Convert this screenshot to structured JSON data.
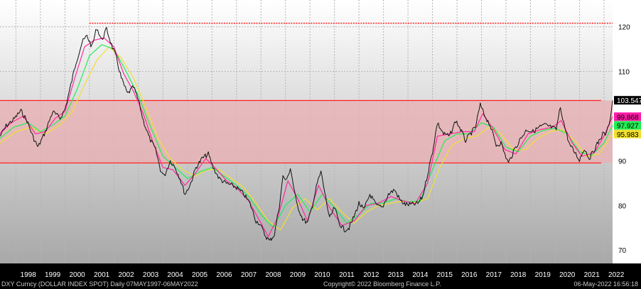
{
  "chart_data": {
    "type": "line",
    "title": "",
    "xlabel": "",
    "ylabel": "",
    "x_range": [
      1997.35,
      2022.35
    ],
    "ylim": [
      67,
      126
    ],
    "x_ticks": [
      "1998",
      "1999",
      "2000",
      "2001",
      "2002",
      "2003",
      "2004",
      "2005",
      "2006",
      "2007",
      "2008",
      "2009",
      "2010",
      "2011",
      "2012",
      "2013",
      "2014",
      "2015",
      "2016",
      "2017",
      "2018",
      "2019",
      "2020",
      "2021",
      "2022"
    ],
    "y_ticks": [
      70,
      80,
      90,
      110,
      120
    ],
    "grid": true,
    "band": {
      "low": 89.5,
      "high": 103.5,
      "color": "#e8b2b4",
      "edge_color": "#ff2020"
    },
    "resistance_line": {
      "value": 120.8,
      "x_start": 2001.0,
      "x_end": 2022.35,
      "color": "#ff3030"
    },
    "series": [
      {
        "name": "",
        "color": "#111111",
        "values": [
          [
            1997.35,
            95.5
          ],
          [
            1997.6,
            97.8
          ],
          [
            1997.9,
            99.2
          ],
          [
            1998.2,
            101.2
          ],
          [
            1998.45,
            99.0
          ],
          [
            1998.7,
            95.3
          ],
          [
            1998.9,
            93.0
          ],
          [
            1999.2,
            96.5
          ],
          [
            1999.5,
            101.0
          ],
          [
            1999.8,
            99.5
          ],
          [
            2000.0,
            101.5
          ],
          [
            2000.2,
            106.0
          ],
          [
            2000.45,
            112.0
          ],
          [
            2000.7,
            116.5
          ],
          [
            2000.9,
            118.0
          ],
          [
            2001.1,
            115.5
          ],
          [
            2001.3,
            119.8
          ],
          [
            2001.5,
            117.0
          ],
          [
            2001.7,
            119.5
          ],
          [
            2001.9,
            116.0
          ],
          [
            2002.1,
            113.0
          ],
          [
            2002.3,
            108.5
          ],
          [
            2002.55,
            105.0
          ],
          [
            2002.8,
            106.5
          ],
          [
            2003.0,
            103.5
          ],
          [
            2003.2,
            99.0
          ],
          [
            2003.45,
            95.0
          ],
          [
            2003.7,
            92.5
          ],
          [
            2003.9,
            88.0
          ],
          [
            2004.05,
            86.5
          ],
          [
            2004.3,
            90.0
          ],
          [
            2004.5,
            88.5
          ],
          [
            2004.7,
            86.0
          ],
          [
            2004.9,
            82.5
          ],
          [
            2005.1,
            84.5
          ],
          [
            2005.35,
            88.5
          ],
          [
            2005.6,
            90.5
          ],
          [
            2005.85,
            91.5
          ],
          [
            2006.05,
            88.5
          ],
          [
            2006.3,
            86.0
          ],
          [
            2006.55,
            85.0
          ],
          [
            2006.8,
            84.5
          ],
          [
            2007.0,
            84.0
          ],
          [
            2007.3,
            82.5
          ],
          [
            2007.55,
            80.5
          ],
          [
            2007.8,
            76.5
          ],
          [
            2007.95,
            76.0
          ],
          [
            2008.15,
            73.5
          ],
          [
            2008.35,
            72.0
          ],
          [
            2008.55,
            73.5
          ],
          [
            2008.75,
            80.0
          ],
          [
            2008.9,
            86.5
          ],
          [
            2009.05,
            85.5
          ],
          [
            2009.2,
            88.5
          ],
          [
            2009.45,
            80.5
          ],
          [
            2009.7,
            77.0
          ],
          [
            2009.9,
            76.0
          ],
          [
            2010.1,
            80.0
          ],
          [
            2010.3,
            85.0
          ],
          [
            2010.45,
            87.5
          ],
          [
            2010.6,
            83.0
          ],
          [
            2010.8,
            77.0
          ],
          [
            2011.0,
            79.5
          ],
          [
            2011.2,
            76.0
          ],
          [
            2011.4,
            74.5
          ],
          [
            2011.6,
            75.0
          ],
          [
            2011.8,
            77.5
          ],
          [
            2012.0,
            80.5
          ],
          [
            2012.2,
            79.0
          ],
          [
            2012.45,
            82.5
          ],
          [
            2012.7,
            80.0
          ],
          [
            2012.95,
            79.5
          ],
          [
            2013.2,
            82.5
          ],
          [
            2013.45,
            83.5
          ],
          [
            2013.7,
            81.0
          ],
          [
            2013.9,
            80.2
          ],
          [
            2014.15,
            80.2
          ],
          [
            2014.4,
            80.4
          ],
          [
            2014.6,
            82.0
          ],
          [
            2014.8,
            87.0
          ],
          [
            2015.0,
            92.0
          ],
          [
            2015.2,
            98.5
          ],
          [
            2015.45,
            96.0
          ],
          [
            2015.7,
            95.5
          ],
          [
            2015.95,
            99.0
          ],
          [
            2016.15,
            97.0
          ],
          [
            2016.35,
            94.5
          ],
          [
            2016.55,
            96.0
          ],
          [
            2016.75,
            97.5
          ],
          [
            2016.95,
            102.5
          ],
          [
            2017.1,
            100.5
          ],
          [
            2017.35,
            98.0
          ],
          [
            2017.6,
            93.5
          ],
          [
            2017.8,
            94.0
          ],
          [
            2017.95,
            91.5
          ],
          [
            2018.1,
            89.5
          ],
          [
            2018.35,
            92.5
          ],
          [
            2018.6,
            95.0
          ],
          [
            2018.85,
            97.0
          ],
          [
            2019.1,
            96.5
          ],
          [
            2019.35,
            97.5
          ],
          [
            2019.6,
            98.0
          ],
          [
            2019.85,
            97.5
          ],
          [
            2020.05,
            97.0
          ],
          [
            2020.22,
            102.0
          ],
          [
            2020.4,
            97.5
          ],
          [
            2020.6,
            93.5
          ],
          [
            2020.85,
            91.5
          ],
          [
            2021.0,
            90.2
          ],
          [
            2021.2,
            92.8
          ],
          [
            2021.4,
            90.5
          ],
          [
            2021.6,
            92.5
          ],
          [
            2021.8,
            94.5
          ],
          [
            2021.95,
            96.0
          ],
          [
            2022.1,
            96.0
          ],
          [
            2022.25,
            99.5
          ],
          [
            2022.35,
            103.5
          ]
        ]
      },
      {
        "name": "",
        "color": "#ff2aa0",
        "values": [
          [
            1997.35,
            96.0
          ],
          [
            1997.8,
            98.5
          ],
          [
            1998.3,
            100.0
          ],
          [
            1998.8,
            96.0
          ],
          [
            1999.2,
            96.5
          ],
          [
            1999.6,
            99.5
          ],
          [
            2000.0,
            101.0
          ],
          [
            2000.4,
            108.5
          ],
          [
            2000.8,
            115.5
          ],
          [
            2001.2,
            117.0
          ],
          [
            2001.6,
            117.5
          ],
          [
            2002.0,
            115.5
          ],
          [
            2002.4,
            109.5
          ],
          [
            2002.8,
            105.5
          ],
          [
            2003.2,
            100.5
          ],
          [
            2003.6,
            94.0
          ],
          [
            2004.0,
            88.5
          ],
          [
            2004.4,
            88.0
          ],
          [
            2004.9,
            84.5
          ],
          [
            2005.3,
            87.0
          ],
          [
            2005.75,
            90.5
          ],
          [
            2006.2,
            88.0
          ],
          [
            2006.6,
            85.5
          ],
          [
            2007.0,
            84.0
          ],
          [
            2007.5,
            81.0
          ],
          [
            2007.9,
            77.0
          ],
          [
            2008.3,
            73.0
          ],
          [
            2008.7,
            77.5
          ],
          [
            2009.1,
            85.5
          ],
          [
            2009.5,
            81.5
          ],
          [
            2009.9,
            76.5
          ],
          [
            2010.35,
            84.5
          ],
          [
            2010.8,
            79.5
          ],
          [
            2011.3,
            75.5
          ],
          [
            2011.8,
            76.5
          ],
          [
            2012.3,
            80.0
          ],
          [
            2012.8,
            80.5
          ],
          [
            2013.3,
            82.0
          ],
          [
            2013.8,
            81.0
          ],
          [
            2014.3,
            80.4
          ],
          [
            2014.8,
            85.0
          ],
          [
            2015.2,
            95.5
          ],
          [
            2015.7,
            96.0
          ],
          [
            2016.2,
            96.5
          ],
          [
            2016.7,
            96.5
          ],
          [
            2017.05,
            100.5
          ],
          [
            2017.5,
            97.0
          ],
          [
            2017.95,
            92.5
          ],
          [
            2018.4,
            91.5
          ],
          [
            2018.9,
            96.0
          ],
          [
            2019.4,
            97.0
          ],
          [
            2019.9,
            97.5
          ],
          [
            2020.25,
            99.0
          ],
          [
            2020.7,
            94.0
          ],
          [
            2021.1,
            91.0
          ],
          [
            2021.6,
            91.8
          ],
          [
            2022.0,
            95.5
          ],
          [
            2022.35,
            99.868
          ]
        ]
      },
      {
        "name": "",
        "color": "#22ee55",
        "values": [
          [
            1997.35,
            95.0
          ],
          [
            1997.9,
            97.5
          ],
          [
            1998.5,
            98.5
          ],
          [
            1999.0,
            96.5
          ],
          [
            1999.5,
            98.0
          ],
          [
            2000.0,
            100.0
          ],
          [
            2000.5,
            106.0
          ],
          [
            2001.0,
            113.5
          ],
          [
            2001.5,
            116.0
          ],
          [
            2002.0,
            115.0
          ],
          [
            2002.5,
            110.0
          ],
          [
            2003.0,
            104.5
          ],
          [
            2003.5,
            97.5
          ],
          [
            2004.0,
            91.0
          ],
          [
            2004.5,
            88.5
          ],
          [
            2005.0,
            86.0
          ],
          [
            2005.5,
            87.5
          ],
          [
            2006.0,
            88.5
          ],
          [
            2006.5,
            86.5
          ],
          [
            2007.0,
            84.5
          ],
          [
            2007.5,
            82.0
          ],
          [
            2008.0,
            78.0
          ],
          [
            2008.5,
            75.0
          ],
          [
            2009.0,
            80.0
          ],
          [
            2009.5,
            82.5
          ],
          [
            2010.0,
            78.5
          ],
          [
            2010.5,
            82.5
          ],
          [
            2011.0,
            79.5
          ],
          [
            2011.5,
            76.0
          ],
          [
            2012.0,
            78.0
          ],
          [
            2012.5,
            80.5
          ],
          [
            2013.0,
            80.5
          ],
          [
            2013.5,
            81.5
          ],
          [
            2014.0,
            80.8
          ],
          [
            2014.5,
            81.0
          ],
          [
            2015.0,
            88.0
          ],
          [
            2015.5,
            94.5
          ],
          [
            2016.0,
            96.0
          ],
          [
            2016.5,
            96.0
          ],
          [
            2017.0,
            98.5
          ],
          [
            2017.5,
            97.5
          ],
          [
            2018.0,
            93.0
          ],
          [
            2018.5,
            92.0
          ],
          [
            2019.0,
            95.5
          ],
          [
            2019.5,
            96.8
          ],
          [
            2020.0,
            97.3
          ],
          [
            2020.5,
            96.0
          ],
          [
            2021.0,
            92.0
          ],
          [
            2021.5,
            91.2
          ],
          [
            2022.0,
            94.0
          ],
          [
            2022.35,
            97.927
          ]
        ]
      },
      {
        "name": "",
        "color": "#f0e030",
        "values": [
          [
            1997.35,
            94.0
          ],
          [
            1998.0,
            96.5
          ],
          [
            1998.6,
            97.5
          ],
          [
            1999.2,
            96.0
          ],
          [
            1999.8,
            98.0
          ],
          [
            2000.3,
            101.0
          ],
          [
            2000.8,
            107.0
          ],
          [
            2001.3,
            112.5
          ],
          [
            2001.8,
            115.5
          ],
          [
            2002.3,
            113.0
          ],
          [
            2002.8,
            108.5
          ],
          [
            2003.3,
            102.0
          ],
          [
            2003.8,
            95.0
          ],
          [
            2004.3,
            90.5
          ],
          [
            2004.8,
            88.0
          ],
          [
            2005.3,
            86.5
          ],
          [
            2005.8,
            88.0
          ],
          [
            2006.3,
            88.0
          ],
          [
            2006.8,
            86.0
          ],
          [
            2007.3,
            84.0
          ],
          [
            2007.8,
            80.5
          ],
          [
            2008.3,
            76.5
          ],
          [
            2008.8,
            74.5
          ],
          [
            2009.3,
            79.5
          ],
          [
            2009.8,
            81.5
          ],
          [
            2010.3,
            79.0
          ],
          [
            2010.8,
            81.5
          ],
          [
            2011.3,
            78.5
          ],
          [
            2011.8,
            76.0
          ],
          [
            2012.3,
            78.5
          ],
          [
            2012.8,
            80.0
          ],
          [
            2013.3,
            80.5
          ],
          [
            2013.8,
            81.0
          ],
          [
            2014.3,
            80.6
          ],
          [
            2014.8,
            81.5
          ],
          [
            2015.3,
            88.5
          ],
          [
            2015.8,
            93.5
          ],
          [
            2016.3,
            95.0
          ],
          [
            2016.8,
            95.5
          ],
          [
            2017.3,
            97.5
          ],
          [
            2017.8,
            96.0
          ],
          [
            2018.3,
            92.5
          ],
          [
            2018.8,
            92.5
          ],
          [
            2019.3,
            95.0
          ],
          [
            2019.8,
            96.5
          ],
          [
            2020.3,
            97.0
          ],
          [
            2020.8,
            94.5
          ],
          [
            2021.3,
            91.0
          ],
          [
            2021.8,
            91.5
          ],
          [
            2022.35,
            95.983
          ]
        ]
      }
    ],
    "value_labels": [
      {
        "text": "103.547",
        "value": 103.547,
        "bg": "#000000",
        "fg": "#ffffff"
      },
      {
        "text": "99.868",
        "value": 99.868,
        "bg": "#ff1aa8",
        "fg": "#000000"
      },
      {
        "text": "97.927",
        "value": 97.927,
        "bg": "#22ee55",
        "fg": "#000000"
      },
      {
        "text": "95.983",
        "value": 95.983,
        "bg": "#f0e030",
        "fg": "#000000"
      }
    ]
  },
  "footer": {
    "left": "DXY Curncy (DOLLAR INDEX SPOT)  Daily 07MAY1997-06MAY2022",
    "center": "Copyright© 2022 Bloomberg Finance L.P.",
    "right": "06-May-2022 16:56:18"
  }
}
